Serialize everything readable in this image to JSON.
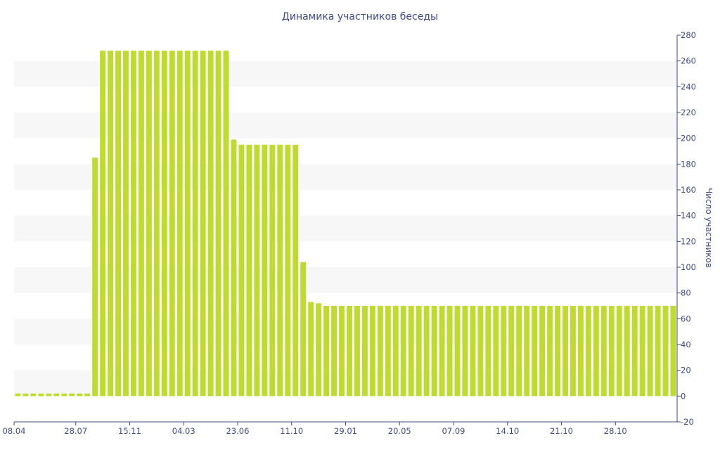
{
  "chart_data": {
    "type": "bar",
    "title": "Динамика участников беседы",
    "xlabel": "",
    "ylabel": "Число участников",
    "ylim": [
      -20,
      280
    ],
    "yticks": [
      -20,
      0,
      20,
      40,
      60,
      80,
      100,
      120,
      140,
      160,
      180,
      200,
      220,
      240,
      260,
      280
    ],
    "y_axis_side": "right",
    "grid": "alternating horizontal bands",
    "bar_color": "#bfdc2e",
    "x_tick_labels": [
      {
        "label": "08.04",
        "index": 0
      },
      {
        "label": "28.07",
        "index": 8
      },
      {
        "label": "15.11",
        "index": 15
      },
      {
        "label": "04.03",
        "index": 22
      },
      {
        "label": "23.06",
        "index": 29
      },
      {
        "label": "11.10",
        "index": 36
      },
      {
        "label": "29.01",
        "index": 43
      },
      {
        "label": "20.05",
        "index": 50
      },
      {
        "label": "07.09",
        "index": 57
      },
      {
        "label": "14.10",
        "index": 64
      },
      {
        "label": "21.10",
        "index": 71
      },
      {
        "label": "28.10",
        "index": 78
      }
    ],
    "values": [
      2,
      2,
      2,
      2,
      2,
      2,
      2,
      2,
      2,
      2,
      185,
      268,
      268,
      268,
      268,
      268,
      268,
      268,
      268,
      268,
      268,
      268,
      268,
      268,
      268,
      268,
      268,
      268,
      199,
      195,
      195,
      195,
      195,
      195,
      195,
      195,
      195,
      104,
      73,
      72,
      70,
      70,
      70,
      70,
      70,
      70,
      70,
      70,
      70,
      70,
      70,
      70,
      70,
      70,
      70,
      70,
      70,
      70,
      70,
      70,
      70,
      70,
      70,
      70,
      70,
      70,
      70,
      70,
      70,
      70,
      70,
      70,
      70,
      70,
      70,
      70,
      70,
      70,
      70,
      70,
      70,
      70,
      70,
      70,
      70,
      70
    ]
  }
}
